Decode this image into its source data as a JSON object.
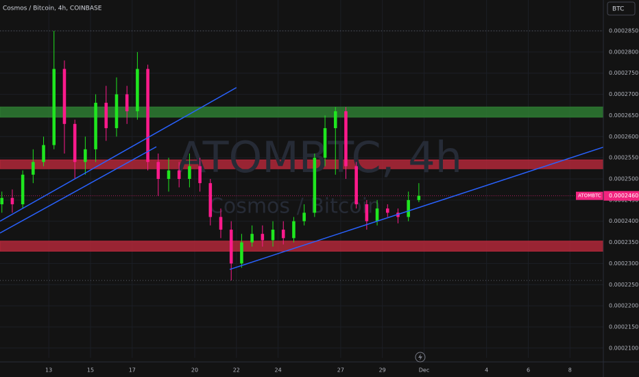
{
  "chart_data": {
    "type": "candlestick",
    "title": "Cosmos / Bitcoin, 4h, COINBASE",
    "watermark": "ATOMBTC, 4h",
    "watermark_subtitle": "Cosmos / Bitcoin",
    "currency_button": "BTC",
    "up_color": "#1fe61f",
    "down_color": "#ff1a8c",
    "x": [
      10.75,
      11.25,
      11.75,
      12.25,
      12.75,
      13.25,
      13.75,
      14.25,
      14.75,
      15.25,
      15.75,
      16.25,
      16.75,
      17.25,
      17.75,
      18.25,
      18.75,
      19.25,
      19.75,
      20.25,
      20.75,
      21.25,
      21.75,
      22.25,
      22.75,
      23.25,
      23.75,
      24.25,
      24.75,
      25.25,
      25.75,
      26.25,
      26.75,
      27.25,
      27.75,
      28.25,
      28.75,
      29.25,
      29.75,
      30.25,
      30.75
    ],
    "open": [
      0.000244,
      0.0002455,
      0.000244,
      0.000251,
      0.000254,
      0.000258,
      0.000276,
      0.000263,
      0.000254,
      0.000257,
      0.000268,
      0.000262,
      0.00027,
      0.000266,
      0.000276,
      0.000254,
      0.00025,
      0.000252,
      0.00025,
      0.000253,
      0.000249,
      0.000241,
      0.000238,
      0.00023,
      0.000235,
      0.000237,
      0.0002355,
      0.000238,
      0.000236,
      0.00024,
      0.000242,
      0.000255,
      0.000262,
      0.000266,
      0.000253,
      0.000244,
      0.00024,
      0.000243,
      0.000242,
      0.000241,
      0.000245
    ],
    "high": [
      0.000247,
      0.0002475,
      0.000252,
      0.000257,
      0.00026,
      0.000285,
      0.000278,
      0.000264,
      0.00026,
      0.00027,
      0.000272,
      0.000274,
      0.000272,
      0.00028,
      0.000277,
      0.000256,
      0.000255,
      0.000254,
      0.000256,
      0.000255,
      0.00025,
      0.000243,
      0.00024,
      0.000237,
      0.000239,
      0.000239,
      0.00024,
      0.00024,
      0.000241,
      0.000244,
      0.000256,
      0.000265,
      0.000267,
      0.000267,
      0.000254,
      0.000245,
      0.000245,
      0.000244,
      0.000243,
      0.000247,
      0.000249
    ],
    "low": [
      0.000242,
      0.000242,
      0.000243,
      0.000249,
      0.000253,
      0.000257,
      0.000256,
      0.00025,
      0.000251,
      0.000254,
      0.000259,
      0.00026,
      0.000263,
      0.000264,
      0.000252,
      0.000246,
      0.000247,
      0.000248,
      0.000248,
      0.000247,
      0.000239,
      0.000236,
      0.000226,
      0.000229,
      0.000234,
      0.000234,
      0.000234,
      0.0002345,
      0.000235,
      0.000239,
      0.000241,
      0.000253,
      0.000251,
      0.00025,
      0.000243,
      0.000238,
      0.000239,
      0.000241,
      0.0002395,
      0.00024,
      0.0002445
    ],
    "close": [
      0.0002455,
      0.000244,
      0.000251,
      0.000254,
      0.000258,
      0.000276,
      0.000263,
      0.000254,
      0.000257,
      0.000268,
      0.000262,
      0.00027,
      0.000266,
      0.000276,
      0.000254,
      0.00025,
      0.000252,
      0.00025,
      0.000253,
      0.000249,
      0.000241,
      0.000238,
      0.00023,
      0.000235,
      0.000237,
      0.0002355,
      0.000238,
      0.000236,
      0.00024,
      0.000242,
      0.000255,
      0.000262,
      0.000266,
      0.000253,
      0.000244,
      0.00024,
      0.000243,
      0.000242,
      0.000241,
      0.000245,
      0.000246
    ],
    "zones": [
      {
        "low": 0.0002646,
        "high": 0.000267,
        "color": "#2e7d32"
      },
      {
        "low": 0.0002524,
        "high": 0.0002545,
        "color": "#b2283a"
      },
      {
        "low": 0.0002329,
        "high": 0.0002353,
        "color": "#b2283a"
      }
    ],
    "trendlines": [
      {
        "x": [
          10.66,
          22
        ],
        "y": [
          0.00024,
          0.0002716
        ],
        "color": "#2962ff"
      },
      {
        "x": [
          10.66,
          18.16
        ],
        "y": [
          0.0002372,
          0.0002576
        ],
        "color": "#2962ff"
      },
      {
        "x": [
          21.68,
          39.6
        ],
        "y": [
          0.0002286,
          0.0002575
        ],
        "color": "#2962ff"
      }
    ],
    "last_price": {
      "symbol": "ATOMBTC",
      "value": 0.000246,
      "label": "0.0002460",
      "color": "#f2247f"
    },
    "xlim": [
      10.66,
      39.6
    ],
    "ylim": [
      0.0002077,
      0.0002923
    ],
    "xticks": [
      13,
      15,
      17,
      20,
      22,
      24,
      27,
      29,
      {
        "value": 31,
        "label": "Dec"
      },
      {
        "value": 34,
        "label": "4"
      },
      {
        "value": 36,
        "label": "6"
      },
      {
        "value": 38,
        "label": "8"
      }
    ],
    "yticks": [
      {
        "value": 0.00021,
        "label": "0.0002100"
      },
      {
        "value": 0.000215,
        "label": "0.0002150"
      },
      {
        "value": 0.00022,
        "label": "0.0002200"
      },
      {
        "value": 0.000225,
        "label": "0.0002250"
      },
      {
        "value": 0.00023,
        "label": "0.0002300"
      },
      {
        "value": 0.000235,
        "label": "0.0002350"
      },
      {
        "value": 0.00024,
        "label": "0.0002400"
      },
      {
        "value": 0.000245,
        "label": "0.0002450"
      },
      {
        "value": 0.00025,
        "label": "0.0002500"
      },
      {
        "value": 0.000255,
        "label": "0.0002550"
      },
      {
        "value": 0.00026,
        "label": "0.0002600"
      },
      {
        "value": 0.000265,
        "label": "0.0002650"
      },
      {
        "value": 0.00027,
        "label": "0.0002700"
      },
      {
        "value": 0.000275,
        "label": "0.0002750"
      },
      {
        "value": 0.00028,
        "label": "0.0002800"
      },
      {
        "value": 0.000285,
        "label": "0.0002850"
      }
    ],
    "grid": true
  }
}
